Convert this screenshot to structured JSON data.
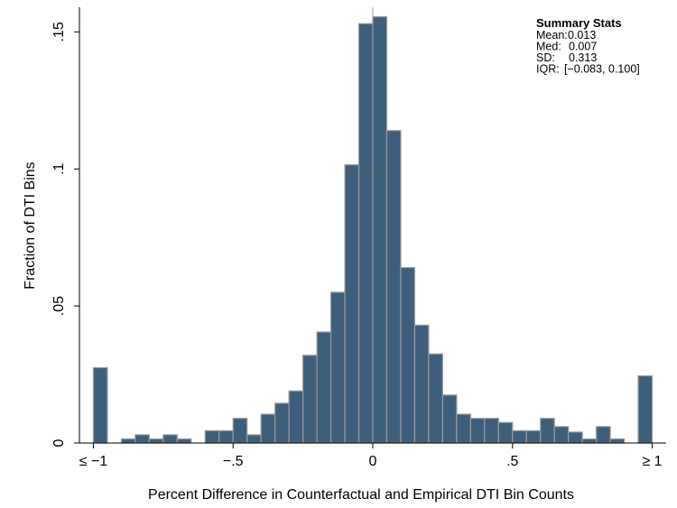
{
  "chart_data": {
    "type": "bar",
    "title": "",
    "xlabel": "Percent Difference in Counterfactual and Empirical DTI Bin Counts",
    "ylabel": "Fraction of DTI Bins",
    "xlim": [
      -1.05,
      1.05
    ],
    "ylim": [
      0,
      0.159
    ],
    "bin_width": 0.05,
    "bin_starts": [
      -1.0,
      -0.9,
      -0.85,
      -0.8,
      -0.75,
      -0.7,
      -0.6,
      -0.55,
      -0.5,
      -0.45,
      -0.4,
      -0.35,
      -0.3,
      -0.25,
      -0.2,
      -0.15,
      -0.1,
      -0.05,
      0.0,
      0.05,
      0.1,
      0.15,
      0.2,
      0.25,
      0.3,
      0.35,
      0.4,
      0.45,
      0.5,
      0.55,
      0.6,
      0.65,
      0.7,
      0.75,
      0.8,
      0.85,
      0.95
    ],
    "values": [
      0.0275,
      0.0015,
      0.003,
      0.0015,
      0.003,
      0.0015,
      0.0045,
      0.0045,
      0.009,
      0.003,
      0.0105,
      0.0145,
      0.019,
      0.032,
      0.0405,
      0.055,
      0.1015,
      0.153,
      0.1555,
      0.114,
      0.064,
      0.043,
      0.0325,
      0.0175,
      0.0105,
      0.009,
      0.009,
      0.0075,
      0.0045,
      0.0045,
      0.009,
      0.006,
      0.004,
      0.0015,
      0.006,
      0.0015,
      0.0245
    ],
    "x_ticks": [
      {
        "value": -1,
        "label": "≤ −1"
      },
      {
        "value": -0.5,
        "label": "−.5"
      },
      {
        "value": 0,
        "label": "0"
      },
      {
        "value": 0.5,
        "label": ".5"
      },
      {
        "value": 1,
        "label": "≥ 1"
      }
    ],
    "y_ticks": [
      {
        "value": 0,
        "label": "0"
      },
      {
        "value": 0.05,
        "label": ".05"
      },
      {
        "value": 0.1,
        "label": ".1"
      },
      {
        "value": 0.15,
        "label": ".15"
      }
    ],
    "reference_line_x": 0,
    "colors": {
      "bar_fill": "#3e5f7c",
      "bar_stroke": "#9a9a9a",
      "axis": "#000000"
    },
    "legend_position": "top-right",
    "annotation": {
      "title": "Summary Stats",
      "lines": [
        {
          "label": "Mean:",
          "value": "0.013"
        },
        {
          "label": "Med:",
          "value": "0.007"
        },
        {
          "label": "SD:",
          "value": "0.313"
        },
        {
          "label": "IQR:",
          "value": "[−0.083, 0.100]"
        }
      ]
    }
  }
}
